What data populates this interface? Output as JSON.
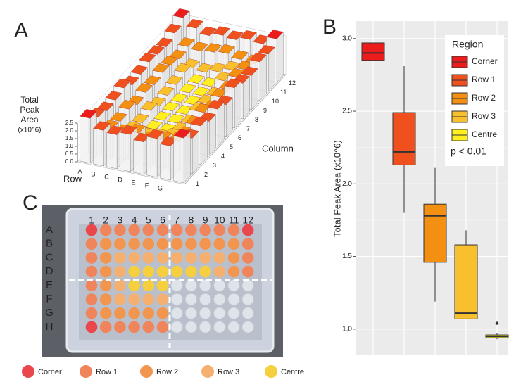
{
  "panel_labels": [
    "A",
    "B",
    "C"
  ],
  "panel_a": {
    "type": "bar3d",
    "z_label": [
      "Total",
      "Peak",
      "Area",
      "(x10^6)"
    ],
    "zlim": [
      0,
      2.5
    ],
    "zticks": [
      {
        "value": 0,
        "label": "0.0"
      },
      {
        "value": 0.5,
        "label": "0.5"
      },
      {
        "value": 1,
        "label": "1.0"
      },
      {
        "value": 1.5,
        "label": "1.5"
      },
      {
        "value": 2,
        "label": "2.0"
      },
      {
        "value": 2.5,
        "label": "2.5"
      }
    ],
    "row_label": "Row",
    "column_label": "Column",
    "rows": [
      "A",
      "B",
      "C",
      "D",
      "E",
      "F",
      "G",
      "H"
    ],
    "columns": [
      1,
      2,
      3,
      4,
      5,
      6,
      7,
      8,
      9,
      10,
      11,
      12
    ],
    "values": [
      [
        2.9,
        2.4,
        2.2,
        2.3,
        2.5,
        2.1,
        2.2,
        2.4,
        2.3,
        2.2,
        2.5,
        2.9
      ],
      [
        2.3,
        1.8,
        1.7,
        1.9,
        1.6,
        1.8,
        1.7,
        1.9,
        1.8,
        1.6,
        1.8,
        2.4
      ],
      [
        2.2,
        1.7,
        1.3,
        1.2,
        1.4,
        1.1,
        1.2,
        1.3,
        1.5,
        1.2,
        1.7,
        2.1
      ],
      [
        2.4,
        1.9,
        1.1,
        0.95,
        0.94,
        0.96,
        0.93,
        0.95,
        0.97,
        1.1,
        1.8,
        2.3
      ],
      [
        2.1,
        1.6,
        1.2,
        0.94,
        0.95,
        0.93,
        0.96,
        0.94,
        0.95,
        1.3,
        1.9,
        2.2
      ],
      [
        2.5,
        1.8,
        1.4,
        1.2,
        1.1,
        1.3,
        1.2,
        1.1,
        1.5,
        1.6,
        1.7,
        2.4
      ],
      [
        2.2,
        1.9,
        1.7,
        1.8,
        2.0,
        1.6,
        1.8,
        1.7,
        1.9,
        1.8,
        1.6,
        2.3
      ],
      [
        2.9,
        2.3,
        2.5,
        2.2,
        2.4,
        2.1,
        2.6,
        2.3,
        2.2,
        2.5,
        2.4,
        2.8
      ]
    ]
  },
  "chart_data": {
    "type": "box",
    "y_label": "Total Peak Area (x10^6)",
    "legend_title": "Region",
    "annotation": "p < 0.01",
    "legend_position": "top-right",
    "grid": true,
    "ylim": [
      0.82,
      3.12
    ],
    "yticks": [
      {
        "value": 1,
        "label": "1.0"
      },
      {
        "value": 1.5,
        "label": "1.5"
      },
      {
        "value": 2,
        "label": "2.0"
      },
      {
        "value": 2.5,
        "label": "2.5"
      },
      {
        "value": 3,
        "label": "3.0"
      }
    ],
    "series": [
      {
        "name": "Corner",
        "color": "#ed1c1c",
        "min": 2.85,
        "q1": 2.85,
        "median": 2.9,
        "q3": 2.97,
        "max": 2.97,
        "outliers": []
      },
      {
        "name": "Row 1",
        "color": "#f0501e",
        "min": 1.8,
        "q1": 2.13,
        "median": 2.22,
        "q3": 2.49,
        "max": 2.81,
        "outliers": []
      },
      {
        "name": "Row 2",
        "color": "#f39011",
        "min": 1.19,
        "q1": 1.46,
        "median": 1.78,
        "q3": 1.86,
        "max": 2.11,
        "outliers": []
      },
      {
        "name": "Row 3",
        "color": "#f9c02e",
        "min": 1.07,
        "q1": 1.07,
        "median": 1.11,
        "q3": 1.58,
        "max": 1.68,
        "outliers": []
      },
      {
        "name": "Centre",
        "color": "#ffef1f",
        "min": 0.93,
        "q1": 0.94,
        "median": 0.95,
        "q3": 0.96,
        "max": 0.97,
        "outliers": [
          1.04
        ]
      }
    ]
  },
  "panel_c": {
    "columns": [
      1,
      2,
      3,
      4,
      5,
      6,
      7,
      8,
      9,
      10,
      11,
      12
    ],
    "rows": [
      "A",
      "B",
      "C",
      "D",
      "E",
      "F",
      "G",
      "H"
    ],
    "legend": [
      {
        "name": "Corner",
        "color": "#e9474b"
      },
      {
        "name": "Row 1",
        "color": "#f0845b"
      },
      {
        "name": "Row 2",
        "color": "#f2964f"
      },
      {
        "name": "Row 3",
        "color": "#f5b070"
      },
      {
        "name": "Centre",
        "color": "#f6cf3e"
      }
    ]
  }
}
